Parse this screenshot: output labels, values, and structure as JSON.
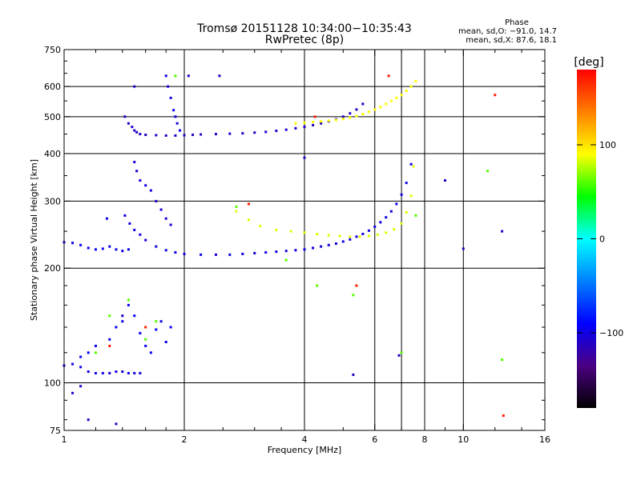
{
  "chart_data": {
    "type": "scatter",
    "title": "Tromsø 20151128 10:34:00−10:35:43",
    "subtitle": "RwPretec (8p)",
    "xlabel": "Frequency [MHz]",
    "ylabel": "Stationary phase Virtual Height [km]",
    "xscale": "log",
    "yscale": "log",
    "xlim": [
      1,
      16
    ],
    "ylim": [
      75,
      750
    ],
    "xticks": [
      1,
      2,
      4,
      6,
      8,
      10,
      16
    ],
    "xtick_labels": [
      "1",
      "2",
      "4",
      "6",
      "8",
      "10",
      "16"
    ],
    "yticks": [
      75,
      100,
      200,
      300,
      400,
      500,
      600,
      750
    ],
    "ytick_labels": [
      "75",
      "100",
      "200",
      "300",
      "400",
      "500",
      "600",
      "750"
    ],
    "x_gridlines": [
      2,
      4,
      6,
      7,
      8,
      10
    ],
    "y_gridlines": [
      100,
      200,
      300,
      400,
      500,
      600
    ],
    "grid": true,
    "stats": {
      "title": "Phase",
      "line1": "mean, sd,O: −91.0, 14.7",
      "line2": "mean, sd,X: 87.6, 18.1"
    },
    "colorbar": {
      "label": "[deg]",
      "range": [
        -180,
        180
      ],
      "ticks": [
        100,
        0,
        -100
      ],
      "tick_labels": [
        "100",
        "0",
        "−100"
      ],
      "colormap": "rainbow",
      "stops": [
        "#000000",
        "#4b0082",
        "#0000ff",
        "#0080ff",
        "#00ffff",
        "#00ff00",
        "#ffff00",
        "#ff8000",
        "#ff0000"
      ]
    },
    "series": [
      {
        "phase": -100,
        "x": [
          1.0,
          1.05,
          1.1,
          1.15,
          1.2,
          1.25,
          1.3,
          1.35,
          1.4,
          1.45,
          1.5,
          1.55
        ],
        "y": [
          111,
          112,
          110,
          107,
          106,
          106,
          106,
          107,
          107,
          106,
          106,
          106
        ]
      },
      {
        "phase": -95,
        "x": [
          1.0,
          1.05,
          1.1,
          1.15,
          1.2,
          1.25,
          1.28,
          1.3,
          1.35,
          1.4,
          1.45
        ],
        "y": [
          234,
          233,
          230,
          226,
          224,
          225,
          270,
          228,
          224,
          222,
          224
        ]
      },
      {
        "phase": -100,
        "x": [
          1.42,
          1.46,
          1.5,
          1.55,
          1.6,
          1.7,
          1.8,
          1.9,
          2.0,
          2.2,
          2.4,
          2.6,
          2.8,
          3.0,
          3.2,
          3.4,
          3.6,
          3.8,
          4.0,
          4.2,
          4.4,
          4.6,
          4.8,
          5.0,
          5.2,
          5.4,
          5.6,
          5.8,
          6.0,
          6.2,
          6.4,
          6.6,
          6.8,
          7.0,
          7.2,
          7.4
        ],
        "y": [
          275,
          262,
          252,
          245,
          237,
          228,
          223,
          220,
          218,
          217,
          217,
          217,
          218,
          219,
          220,
          221,
          222,
          223,
          224,
          226,
          228,
          230,
          232,
          235,
          238,
          242,
          246,
          251,
          257,
          264,
          272,
          282,
          295,
          312,
          335,
          375
        ]
      },
      {
        "phase": -110,
        "x": [
          1.42,
          1.45,
          1.48,
          1.5,
          1.52,
          1.55,
          1.6,
          1.7,
          1.8,
          1.9,
          2.0,
          2.1,
          2.2,
          2.4,
          2.6,
          2.8,
          3.0,
          3.2,
          3.4,
          3.6,
          3.8,
          4.0,
          4.2,
          4.4,
          4.6,
          4.8,
          5.0,
          5.2,
          5.4,
          5.6
        ],
        "y": [
          500,
          480,
          470,
          460,
          455,
          450,
          448,
          447,
          446,
          446,
          447,
          448,
          449,
          450,
          451,
          452,
          454,
          456,
          459,
          462,
          466,
          470,
          475,
          480,
          486,
          492,
          500,
          510,
          522,
          540
        ]
      },
      {
        "phase": -105,
        "x": [
          1.5,
          1.52,
          1.55,
          1.6,
          1.65,
          1.7,
          1.75,
          1.8,
          1.85
        ],
        "y": [
          380,
          360,
          340,
          330,
          320,
          300,
          285,
          270,
          260
        ]
      },
      {
        "phase": -100,
        "x": [
          1.8,
          1.82,
          1.85,
          1.88,
          1.9,
          1.92,
          1.95
        ],
        "y": [
          640,
          600,
          560,
          520,
          500,
          480,
          460
        ]
      },
      {
        "phase": 85,
        "x": [
          2.7,
          2.9,
          3.1,
          3.4,
          3.7,
          4.0,
          4.3,
          4.6,
          4.9,
          5.2,
          5.5,
          5.8,
          6.1,
          6.4,
          6.7,
          7.0,
          7.2,
          7.4,
          7.5
        ],
        "y": [
          282,
          268,
          258,
          252,
          250,
          248,
          246,
          244,
          243,
          242,
          242,
          243,
          245,
          248,
          253,
          262,
          280,
          310,
          370
        ]
      },
      {
        "phase": 90,
        "x": [
          3.8,
          4.0,
          4.2,
          4.4,
          4.6,
          4.8,
          5.0,
          5.2,
          5.4,
          5.6,
          5.8,
          6.0,
          6.2,
          6.4,
          6.6,
          6.8,
          7.0,
          7.2,
          7.4,
          7.6
        ],
        "y": [
          480,
          482,
          484,
          486,
          488,
          490,
          493,
          497,
          502,
          508,
          515,
          522,
          530,
          540,
          550,
          560,
          570,
          585,
          600,
          620
        ]
      },
      {
        "phase": -95,
        "x": [
          1.1,
          1.15,
          1.2,
          1.3,
          1.35,
          1.4,
          1.45,
          1.5,
          1.55,
          1.6,
          1.65,
          1.7,
          1.75,
          1.8,
          1.85
        ],
        "y": [
          117,
          120,
          125,
          130,
          140,
          145,
          160,
          150,
          135,
          125,
          120,
          138,
          145,
          128,
          140
        ]
      },
      {
        "phase": 60,
        "x": [
          1.2,
          1.3,
          1.45,
          1.6,
          1.7,
          1.9,
          2.7,
          3.6,
          4.3,
          5.3,
          7.0,
          7.6,
          12.5,
          11.5
        ],
        "y": [
          120,
          150,
          165,
          130,
          145,
          640,
          290,
          210,
          180,
          170,
          120,
          275,
          115,
          360
        ]
      },
      {
        "phase": -110,
        "x": [
          1.05,
          1.1,
          1.15,
          1.35,
          1.4,
          1.5,
          2.05,
          2.45,
          4.0,
          5.3,
          6.9,
          9.0,
          10.0,
          12.5
        ],
        "y": [
          94,
          98,
          80,
          78,
          150,
          600,
          640,
          640,
          390,
          105,
          118,
          340,
          225,
          250
        ]
      },
      {
        "phase": 170,
        "x": [
          1.3,
          1.6,
          2.9,
          4.25,
          5.4,
          6.5,
          12.0,
          12.6
        ],
        "y": [
          125,
          140,
          295,
          500,
          180,
          640,
          570,
          82
        ]
      }
    ]
  }
}
